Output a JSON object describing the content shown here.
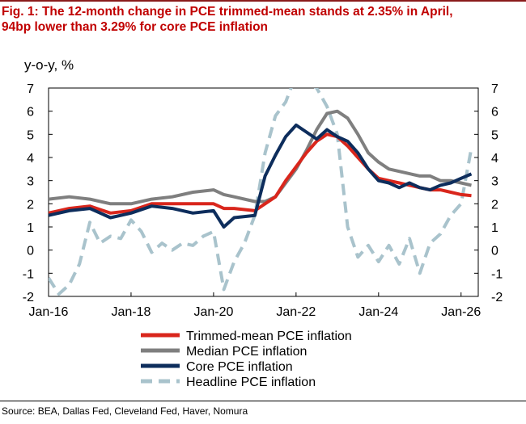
{
  "figure": {
    "title_line1": "Fig. 1: The 12-month change in PCE trimmed-mean stands at 2.35% in April,",
    "title_line2": "94bp lower than 3.29% for core PCE inflation",
    "source": "Source: BEA, Dallas Fed, Cleveland Fed, Haver, Nomura"
  },
  "chart_data": {
    "type": "line",
    "title": "",
    "xlabel": "",
    "ylabel": "y-o-y, %",
    "ylim": [
      -2,
      7
    ],
    "xlim": [
      "2016-01",
      "2026-06"
    ],
    "y_ticks": [
      "7",
      "6",
      "5",
      "4",
      "3",
      "2",
      "1",
      "0",
      "-1",
      "-2"
    ],
    "x_ticks": [
      "Jan-16",
      "Jan-18",
      "Jan-20",
      "Jan-22",
      "Jan-24",
      "Jan-26"
    ],
    "grid": false,
    "secondary_y_axis": true,
    "legend_position": "bottom",
    "series": [
      {
        "name": "Trimmed-mean PCE inflation",
        "color": "#d9261c",
        "style": "solid",
        "points": [
          [
            "2016-01",
            1.6
          ],
          [
            "2016-07",
            1.8
          ],
          [
            "2017-01",
            1.9
          ],
          [
            "2017-07",
            1.6
          ],
          [
            "2018-01",
            1.7
          ],
          [
            "2018-07",
            2.0
          ],
          [
            "2019-01",
            2.0
          ],
          [
            "2019-07",
            2.0
          ],
          [
            "2020-01",
            2.0
          ],
          [
            "2020-04",
            1.8
          ],
          [
            "2020-07",
            1.8
          ],
          [
            "2021-01",
            1.7
          ],
          [
            "2021-04",
            2.0
          ],
          [
            "2021-07",
            2.3
          ],
          [
            "2021-10",
            3.0
          ],
          [
            "2022-01",
            3.6
          ],
          [
            "2022-04",
            4.2
          ],
          [
            "2022-07",
            4.7
          ],
          [
            "2022-10",
            5.0
          ],
          [
            "2023-01",
            4.9
          ],
          [
            "2023-04",
            4.5
          ],
          [
            "2023-07",
            4.0
          ],
          [
            "2023-10",
            3.5
          ],
          [
            "2024-01",
            3.1
          ],
          [
            "2024-04",
            3.0
          ],
          [
            "2024-07",
            2.9
          ],
          [
            "2024-10",
            2.8
          ],
          [
            "2025-01",
            2.7
          ],
          [
            "2025-04",
            2.6
          ],
          [
            "2025-07",
            2.6
          ],
          [
            "2025-10",
            2.5
          ],
          [
            "2026-01",
            2.4
          ],
          [
            "2026-04",
            2.35
          ]
        ]
      },
      {
        "name": "Median PCE inflation",
        "color": "#7f7f7f",
        "style": "solid",
        "points": [
          [
            "2016-01",
            2.2
          ],
          [
            "2016-07",
            2.3
          ],
          [
            "2017-01",
            2.2
          ],
          [
            "2017-07",
            2.0
          ],
          [
            "2018-01",
            2.0
          ],
          [
            "2018-07",
            2.2
          ],
          [
            "2019-01",
            2.3
          ],
          [
            "2019-07",
            2.5
          ],
          [
            "2020-01",
            2.6
          ],
          [
            "2020-04",
            2.4
          ],
          [
            "2020-07",
            2.3
          ],
          [
            "2021-01",
            2.1
          ],
          [
            "2021-04",
            2.1
          ],
          [
            "2021-07",
            2.3
          ],
          [
            "2021-10",
            2.9
          ],
          [
            "2022-01",
            3.5
          ],
          [
            "2022-04",
            4.3
          ],
          [
            "2022-07",
            5.2
          ],
          [
            "2022-10",
            5.9
          ],
          [
            "2023-01",
            6.0
          ],
          [
            "2023-04",
            5.7
          ],
          [
            "2023-07",
            5.0
          ],
          [
            "2023-10",
            4.2
          ],
          [
            "2024-01",
            3.8
          ],
          [
            "2024-04",
            3.5
          ],
          [
            "2024-07",
            3.4
          ],
          [
            "2024-10",
            3.3
          ],
          [
            "2025-01",
            3.2
          ],
          [
            "2025-04",
            3.2
          ],
          [
            "2025-07",
            3.0
          ],
          [
            "2025-10",
            3.0
          ],
          [
            "2026-01",
            2.9
          ],
          [
            "2026-04",
            2.8
          ]
        ]
      },
      {
        "name": "Core PCE inflation",
        "color": "#0d2d5c",
        "style": "solid",
        "points": [
          [
            "2016-01",
            1.5
          ],
          [
            "2016-07",
            1.7
          ],
          [
            "2017-01",
            1.8
          ],
          [
            "2017-07",
            1.4
          ],
          [
            "2018-01",
            1.6
          ],
          [
            "2018-07",
            1.9
          ],
          [
            "2019-01",
            1.8
          ],
          [
            "2019-07",
            1.6
          ],
          [
            "2020-01",
            1.7
          ],
          [
            "2020-04",
            1.0
          ],
          [
            "2020-07",
            1.4
          ],
          [
            "2021-01",
            1.5
          ],
          [
            "2021-04",
            3.2
          ],
          [
            "2021-07",
            4.1
          ],
          [
            "2021-10",
            4.9
          ],
          [
            "2022-01",
            5.4
          ],
          [
            "2022-04",
            5.1
          ],
          [
            "2022-07",
            4.8
          ],
          [
            "2022-10",
            5.2
          ],
          [
            "2023-01",
            4.9
          ],
          [
            "2023-04",
            4.7
          ],
          [
            "2023-07",
            4.2
          ],
          [
            "2023-10",
            3.5
          ],
          [
            "2024-01",
            3.0
          ],
          [
            "2024-04",
            2.9
          ],
          [
            "2024-07",
            2.7
          ],
          [
            "2024-10",
            2.9
          ],
          [
            "2025-01",
            2.7
          ],
          [
            "2025-04",
            2.6
          ],
          [
            "2025-07",
            2.8
          ],
          [
            "2025-10",
            2.9
          ],
          [
            "2026-01",
            3.1
          ],
          [
            "2026-04",
            3.29
          ]
        ]
      },
      {
        "name": "Headline PCE inflation",
        "color": "#a9c3cc",
        "style": "dashed",
        "points": [
          [
            "2016-01",
            -1.2
          ],
          [
            "2016-04",
            -1.9
          ],
          [
            "2016-07",
            -1.5
          ],
          [
            "2016-10",
            -0.6
          ],
          [
            "2017-01",
            1.2
          ],
          [
            "2017-04",
            0.3
          ],
          [
            "2017-07",
            0.6
          ],
          [
            "2017-10",
            0.5
          ],
          [
            "2018-01",
            1.3
          ],
          [
            "2018-04",
            0.8
          ],
          [
            "2018-07",
            -0.1
          ],
          [
            "2018-10",
            0.3
          ],
          [
            "2019-01",
            0.0
          ],
          [
            "2019-04",
            0.3
          ],
          [
            "2019-07",
            0.2
          ],
          [
            "2019-10",
            0.6
          ],
          [
            "2020-01",
            0.8
          ],
          [
            "2020-04",
            -1.7
          ],
          [
            "2020-07",
            -0.5
          ],
          [
            "2020-10",
            0.3
          ],
          [
            "2021-01",
            1.5
          ],
          [
            "2021-04",
            4.2
          ],
          [
            "2021-07",
            5.8
          ],
          [
            "2021-10",
            6.4
          ],
          [
            "2022-01",
            7.6
          ],
          [
            "2022-07",
            7.0
          ],
          [
            "2022-10",
            6.2
          ],
          [
            "2023-01",
            5.0
          ],
          [
            "2023-04",
            1.0
          ],
          [
            "2023-07",
            -0.3
          ],
          [
            "2023-10",
            0.2
          ],
          [
            "2024-01",
            -0.5
          ],
          [
            "2024-04",
            0.2
          ],
          [
            "2024-07",
            -0.6
          ],
          [
            "2024-10",
            0.5
          ],
          [
            "2025-01",
            -1.0
          ],
          [
            "2025-04",
            0.3
          ],
          [
            "2025-07",
            0.7
          ],
          [
            "2025-10",
            1.5
          ],
          [
            "2026-01",
            2.0
          ],
          [
            "2026-04",
            4.4
          ]
        ]
      }
    ]
  }
}
